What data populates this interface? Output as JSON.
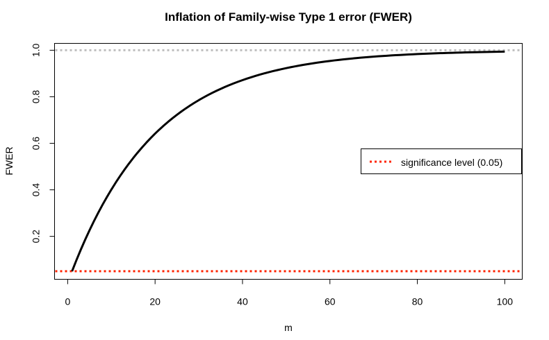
{
  "chart_data": {
    "type": "line",
    "title": "Inflation of Family-wise Type 1 error (FWER)",
    "xlabel": "m",
    "ylabel": "FWER",
    "xlim": [
      -3.0,
      104.0
    ],
    "ylim": [
      0.0155,
      1.0295
    ],
    "x_ticks": [
      0,
      20,
      40,
      60,
      80,
      100
    ],
    "y_ticks": [
      0.2,
      0.4,
      0.6,
      0.8,
      1.0
    ],
    "x_tick_labels": [
      "0",
      "20",
      "40",
      "60",
      "80",
      "100"
    ],
    "y_tick_labels": [
      "0.2",
      "0.4",
      "0.6",
      "0.8",
      "1.0"
    ],
    "grid": false,
    "series": [
      {
        "color": "#000000",
        "style": "solid",
        "alpha": 0.05,
        "m_range": [
          1,
          100
        ]
      }
    ],
    "reference_lines": [
      {
        "y": 1.0,
        "color": "#bebebe",
        "style": "dotted"
      },
      {
        "y": 0.05,
        "color": "#ff2400",
        "style": "dotted"
      }
    ],
    "legend": {
      "placement": "right",
      "entries": [
        {
          "label": "significance level (0.05)",
          "color": "#ff2400",
          "style": "dotted"
        }
      ]
    }
  }
}
